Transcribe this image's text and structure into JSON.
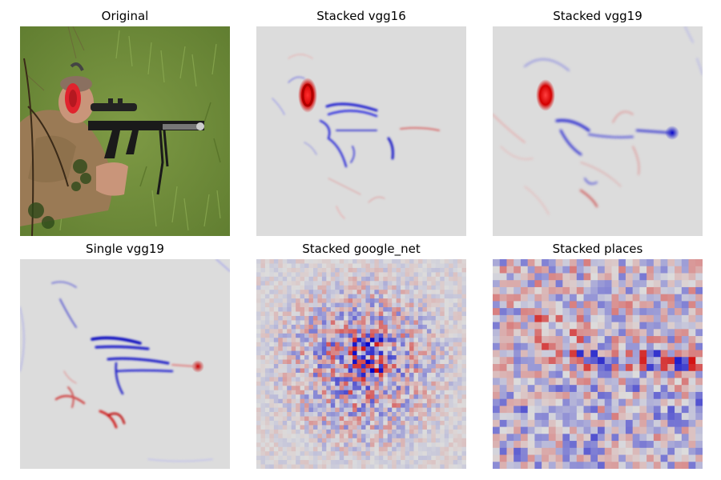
{
  "figure": {
    "panels": [
      {
        "title": "Original",
        "kind": "photo",
        "subject": "soldier-aiming-rifle"
      },
      {
        "title": "Stacked vgg16",
        "kind": "smooth-heatmap"
      },
      {
        "title": "Stacked vgg19",
        "kind": "smooth-heatmap"
      },
      {
        "title": "Single vgg19",
        "kind": "smooth-heatmap"
      },
      {
        "title": "Stacked google_net",
        "kind": "grid-heatmap",
        "grid": 48,
        "seed": 7
      },
      {
        "title": "Stacked places",
        "kind": "grid-heatmap",
        "grid": 30,
        "seed": 19
      }
    ],
    "colors": {
      "background_gray": "#dcdcdc",
      "positive_red": "#d40000",
      "negative_blue": "#0000c8",
      "grass": "#6d8a3a",
      "shirt": "#9a7a55",
      "earmuff": "#e0232d",
      "rifle": "#1a1a1a"
    }
  }
}
